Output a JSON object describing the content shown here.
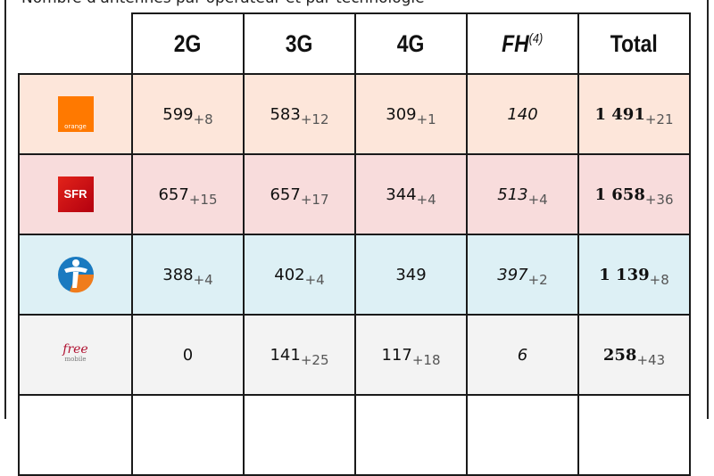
{
  "caption": "Nombre d'antennes par opérateur et par technologie",
  "headers": [
    "2G",
    "3G",
    "4G",
    "FH",
    "Total"
  ],
  "fh_note": "(4)",
  "colors": {
    "orange": "#fde6da",
    "sfr": "#f8dcdc",
    "bouygues": "#ddf0f5",
    "free": "#f3f3f3"
  },
  "rows": [
    {
      "operator": "orange",
      "logo_text": "orange",
      "cells": [
        {
          "v": "599",
          "d": "+8"
        },
        {
          "v": "583",
          "d": "+12"
        },
        {
          "v": "309",
          "d": "+1"
        },
        {
          "v": "140",
          "d": ""
        },
        {
          "v": "1 491",
          "d": "+21"
        }
      ]
    },
    {
      "operator": "SFR",
      "logo_text": "SFR",
      "cells": [
        {
          "v": "657",
          "d": "+15"
        },
        {
          "v": "657",
          "d": "+17"
        },
        {
          "v": "344",
          "d": "+4"
        },
        {
          "v": "513",
          "d": "+4"
        },
        {
          "v": "1 658",
          "d": "+36"
        }
      ]
    },
    {
      "operator": "Bouygues Telecom",
      "logo_text": "",
      "cells": [
        {
          "v": "388",
          "d": "+4"
        },
        {
          "v": "402",
          "d": "+4"
        },
        {
          "v": "349",
          "d": ""
        },
        {
          "v": "397",
          "d": "+2"
        },
        {
          "v": "1 139",
          "d": "+8"
        }
      ]
    },
    {
      "operator": "Free mobile",
      "logo_text": "free mobile",
      "cells": [
        {
          "v": "0",
          "d": ""
        },
        {
          "v": "141",
          "d": "+25"
        },
        {
          "v": "117",
          "d": "+18"
        },
        {
          "v": "6",
          "d": ""
        },
        {
          "v": "258",
          "d": "+43"
        }
      ]
    }
  ]
}
